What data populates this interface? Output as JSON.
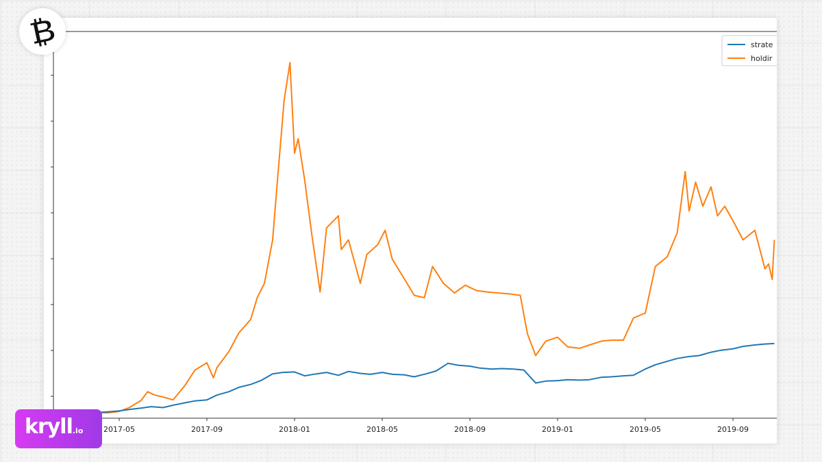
{
  "chart_data": {
    "type": "line",
    "x_ticks": [
      "2017-05",
      "2017-09",
      "2018-01",
      "2018-05",
      "2018-09",
      "2019-01",
      "2019-05",
      "2019-09"
    ],
    "xlim": [
      "2017-02",
      "2019-11"
    ],
    "ylabel": "",
    "y_tick_labels_visible": false,
    "grid": false,
    "legend": {
      "placement": "top-right",
      "entries": [
        "strate",
        "holdir"
      ]
    },
    "series": [
      {
        "name": "strate",
        "color": "#1f77b4",
        "x": [
          "2017-02-15",
          "2017-03-01",
          "2017-03-15",
          "2017-04-01",
          "2017-04-15",
          "2017-05-01",
          "2017-05-15",
          "2017-06-01",
          "2017-06-15",
          "2017-07-01",
          "2017-07-15",
          "2017-08-01",
          "2017-08-15",
          "2017-09-01",
          "2017-09-15",
          "2017-10-01",
          "2017-10-15",
          "2017-11-01",
          "2017-11-15",
          "2017-12-01",
          "2017-12-15",
          "2018-01-01",
          "2018-01-15",
          "2018-02-01",
          "2018-02-15",
          "2018-03-01",
          "2018-03-15",
          "2018-04-01",
          "2018-04-15",
          "2018-05-01",
          "2018-05-15",
          "2018-06-01",
          "2018-06-15",
          "2018-07-01",
          "2018-07-15",
          "2018-08-01",
          "2018-08-15",
          "2018-09-01",
          "2018-09-15",
          "2018-10-01",
          "2018-10-15",
          "2018-11-01",
          "2018-11-15",
          "2018-12-01",
          "2018-12-15",
          "2019-01-01",
          "2019-01-15",
          "2019-02-01",
          "2019-02-15",
          "2019-03-01",
          "2019-03-15",
          "2019-04-01",
          "2019-04-15",
          "2019-05-01",
          "2019-05-15",
          "2019-06-01",
          "2019-06-15",
          "2019-07-01",
          "2019-07-15",
          "2019-08-01",
          "2019-08-15",
          "2019-09-01",
          "2019-09-15",
          "2019-10-01",
          "2019-10-15",
          "2019-10-28"
        ],
        "values": [
          0.1,
          0.1,
          0.11,
          0.12,
          0.13,
          0.15,
          0.18,
          0.21,
          0.24,
          0.22,
          0.27,
          0.32,
          0.36,
          0.38,
          0.48,
          0.55,
          0.64,
          0.7,
          0.78,
          0.92,
          0.95,
          0.96,
          0.88,
          0.92,
          0.95,
          0.89,
          0.97,
          0.93,
          0.91,
          0.95,
          0.91,
          0.9,
          0.86,
          0.92,
          0.98,
          1.14,
          1.1,
          1.08,
          1.04,
          1.02,
          1.03,
          1.02,
          1.0,
          0.73,
          0.77,
          0.78,
          0.8,
          0.79,
          0.8,
          0.85,
          0.86,
          0.88,
          0.89,
          1.02,
          1.11,
          1.18,
          1.24,
          1.28,
          1.3,
          1.37,
          1.41,
          1.44,
          1.49,
          1.52,
          1.54,
          1.55
        ]
      },
      {
        "name": "holdir",
        "color": "#ff7f0e",
        "x": [
          "2017-02-15",
          "2017-03-01",
          "2017-03-15",
          "2017-04-01",
          "2017-04-15",
          "2017-05-01",
          "2017-05-15",
          "2017-06-01",
          "2017-06-10",
          "2017-06-20",
          "2017-07-01",
          "2017-07-15",
          "2017-08-01",
          "2017-08-15",
          "2017-09-01",
          "2017-09-10",
          "2017-09-15",
          "2017-10-01",
          "2017-10-15",
          "2017-11-01",
          "2017-11-10",
          "2017-11-20",
          "2017-12-01",
          "2017-12-08",
          "2017-12-17",
          "2017-12-25",
          "2018-01-01",
          "2018-01-06",
          "2018-01-15",
          "2018-01-25",
          "2018-02-06",
          "2018-02-15",
          "2018-03-01",
          "2018-03-05",
          "2018-03-15",
          "2018-04-01",
          "2018-04-10",
          "2018-04-25",
          "2018-05-05",
          "2018-05-15",
          "2018-06-01",
          "2018-06-15",
          "2018-06-29",
          "2018-07-10",
          "2018-07-25",
          "2018-08-10",
          "2018-08-25",
          "2018-09-10",
          "2018-09-25",
          "2018-10-10",
          "2018-10-25",
          "2018-11-10",
          "2018-11-20",
          "2018-12-01",
          "2018-12-15",
          "2019-01-01",
          "2019-01-15",
          "2019-02-01",
          "2019-02-15",
          "2019-03-01",
          "2019-03-15",
          "2019-04-01",
          "2019-04-15",
          "2019-05-01",
          "2019-05-15",
          "2019-06-01",
          "2019-06-15",
          "2019-06-26",
          "2019-07-01",
          "2019-07-10",
          "2019-07-20",
          "2019-08-01",
          "2019-08-10",
          "2019-08-20",
          "2019-09-01",
          "2019-09-15",
          "2019-10-01",
          "2019-10-15",
          "2019-10-20",
          "2019-10-25",
          "2019-10-28"
        ],
        "values": [
          0.1,
          0.07,
          0.1,
          0.12,
          0.11,
          0.14,
          0.22,
          0.37,
          0.55,
          0.48,
          0.44,
          0.38,
          0.68,
          1.0,
          1.15,
          0.84,
          1.05,
          1.38,
          1.77,
          2.05,
          2.5,
          2.8,
          3.7,
          5.0,
          6.6,
          7.38,
          5.5,
          5.8,
          4.95,
          3.8,
          2.62,
          3.95,
          4.2,
          3.5,
          3.7,
          2.8,
          3.4,
          3.6,
          3.9,
          3.3,
          2.9,
          2.55,
          2.5,
          3.15,
          2.8,
          2.6,
          2.76,
          2.65,
          2.62,
          2.6,
          2.58,
          2.55,
          1.75,
          1.3,
          1.6,
          1.68,
          1.48,
          1.45,
          1.52,
          1.6,
          1.62,
          1.62,
          2.08,
          2.18,
          3.15,
          3.35,
          3.85,
          5.12,
          4.3,
          4.9,
          4.4,
          4.8,
          4.2,
          4.4,
          4.1,
          3.7,
          3.9,
          3.1,
          3.2,
          2.88,
          3.7
        ]
      }
    ]
  },
  "branding": {
    "top_logo_glyph": "₿",
    "badge_word": "kryll",
    "badge_tld": ".io",
    "badge_gradient": [
      "#d63bf0",
      "#9f3ae8"
    ]
  }
}
